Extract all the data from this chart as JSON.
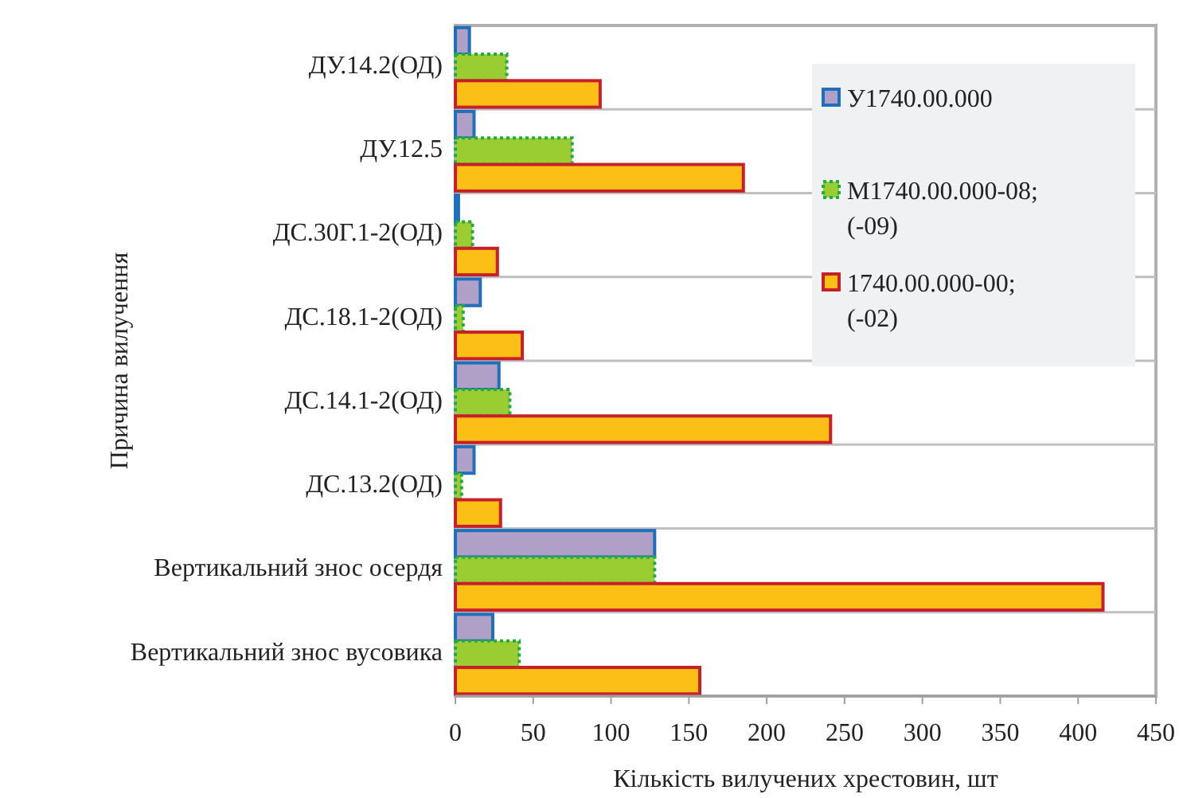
{
  "chart_data": {
    "type": "bar",
    "orientation": "horizontal",
    "xlabel": "Кількість вилучених хрестовин, шт",
    "ylabel": "Причина вилучення",
    "categories": [
      "ДУ.14.2(ОД)",
      "ДУ.12.5",
      "ДС.30Г.1-2(ОД)",
      "ДС.18.1-2(ОД)",
      "ДС.14.1-2(ОД)",
      "ДС.13.2(ОД)",
      "Вертикальний знос осердя",
      "Вертикальний знос вусовика"
    ],
    "series": [
      {
        "name": "У1740.00.000",
        "color": "#b0a0c8",
        "values": [
          9,
          12,
          2,
          16,
          28,
          12,
          128,
          24
        ]
      },
      {
        "name": "М1740.00.000-08; (-09)",
        "color": "#9acd32",
        "values": [
          33,
          75,
          11,
          5,
          35,
          4,
          128,
          41
        ]
      },
      {
        "name": "1740.00.000-00; (-02)",
        "color": "#fbbf15",
        "values": [
          93,
          185,
          27,
          43,
          241,
          29,
          416,
          157
        ]
      }
    ],
    "xlim": [
      0,
      450
    ],
    "xticks": [
      0,
      50,
      100,
      150,
      200,
      250,
      300,
      350,
      400,
      450
    ],
    "grid": false,
    "legend": "top right"
  }
}
